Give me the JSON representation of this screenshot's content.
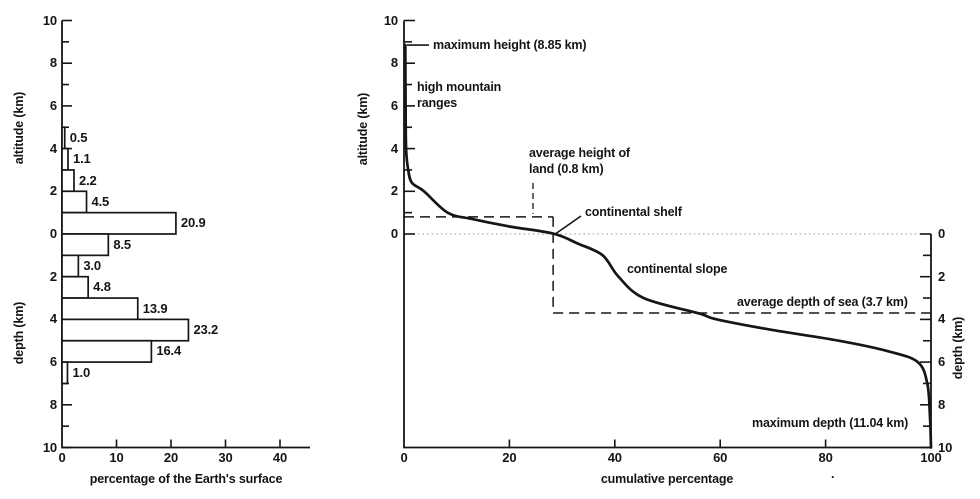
{
  "figure": {
    "background": "#ffffff",
    "ink_color": "#161616",
    "artifact_dot": "."
  },
  "chart_data": [
    {
      "id": "surface-area-histogram",
      "type": "bar",
      "orientation": "horizontal",
      "xlabel": "percentage of the Earth's surface",
      "ylabel_altitude": "altitude (km)",
      "ylabel_depth": "depth (km)",
      "x_ticks": [
        0,
        10,
        20,
        30,
        40
      ],
      "xlim": [
        0,
        45
      ],
      "altitude_axis_ticks": [
        10,
        8,
        6,
        4,
        2,
        0
      ],
      "depth_axis_ticks": [
        2,
        4,
        6,
        8,
        10
      ],
      "ylim_km": [
        -10,
        10
      ],
      "grid": false,
      "bins": [
        {
          "band_km": "altitude 4 to 5",
          "top_km": 5,
          "value": 0.5,
          "label": "0.5"
        },
        {
          "band_km": "altitude 3 to 4",
          "top_km": 4,
          "value": 1.1,
          "label": "1.1"
        },
        {
          "band_km": "altitude 2 to 3",
          "top_km": 3,
          "value": 2.2,
          "label": "2.2"
        },
        {
          "band_km": "altitude 1 to 2",
          "top_km": 2,
          "value": 4.5,
          "label": "4.5"
        },
        {
          "band_km": "altitude 0 to 1",
          "top_km": 1,
          "value": 20.9,
          "label": "20.9"
        },
        {
          "band_km": "depth 0 to 1",
          "top_km": 0,
          "value": 8.5,
          "label": "8.5"
        },
        {
          "band_km": "depth 1 to 2",
          "top_km": -1,
          "value": 3.0,
          "label": "3.0"
        },
        {
          "band_km": "depth 2 to 3",
          "top_km": -2,
          "value": 4.8,
          "label": "4.8"
        },
        {
          "band_km": "depth 3 to 4",
          "top_km": -3,
          "value": 13.9,
          "label": "13.9"
        },
        {
          "band_km": "depth 4 to 5",
          "top_km": -4,
          "value": 23.2,
          "label": "23.2"
        },
        {
          "band_km": "depth 5 to 6",
          "top_km": -5,
          "value": 16.4,
          "label": "16.4"
        },
        {
          "band_km": "depth 6 to 7",
          "top_km": -6,
          "value": 1.0,
          "label": "1.0"
        }
      ]
    },
    {
      "id": "hypsographic-curve",
      "type": "line",
      "xlabel": "cumulative percentage",
      "ylabel_altitude": "altitude (km)",
      "ylabel_depth": "depth (km)",
      "x_ticks": [
        0,
        20,
        40,
        60,
        80,
        100
      ],
      "xlim": [
        0,
        100
      ],
      "altitude_axis_ticks": [
        10,
        8,
        6,
        4,
        2,
        0
      ],
      "depth_axis_ticks": [
        0,
        2,
        4,
        6,
        8,
        10
      ],
      "ylim_km": [
        -10,
        10
      ],
      "grid": false,
      "curve_points": [
        [
          0.25,
          8.85
        ],
        [
          0.3,
          6
        ],
        [
          0.4,
          4
        ],
        [
          0.8,
          3
        ],
        [
          1.5,
          2.4
        ],
        [
          3.8,
          2
        ],
        [
          8.3,
          1
        ],
        [
          13,
          0.7
        ],
        [
          20,
          0.35
        ],
        [
          28.3,
          0.02
        ],
        [
          33,
          -0.45
        ],
        [
          37.7,
          -1
        ],
        [
          40.7,
          -2
        ],
        [
          45.5,
          -3
        ],
        [
          56,
          -3.72
        ],
        [
          59.4,
          -4
        ],
        [
          70,
          -4.5
        ],
        [
          82.6,
          -5
        ],
        [
          92,
          -5.5
        ],
        [
          97.5,
          -6
        ],
        [
          99.3,
          -7
        ],
        [
          99.8,
          -8.5
        ],
        [
          100,
          -10
        ]
      ],
      "reference_lines": {
        "sea_level_km": 0,
        "average_height_of_land_km": 0.8,
        "average_depth_of_sea_km": 3.7,
        "dashed_corner_cumulative_pct": 28.3
      },
      "annotations": {
        "max_height": {
          "text": "maximum height (8.85 km)",
          "value_km": 8.85
        },
        "high_mountain": {
          "lines": [
            "high mountain",
            "ranges"
          ]
        },
        "avg_height": {
          "lines": [
            "average height of",
            "land (0.8 km)"
          ],
          "value_km": 0.8
        },
        "continental_shelf": {
          "text": "continental shelf"
        },
        "continental_slope": {
          "text": "continental slope"
        },
        "avg_depth": {
          "text": "average depth of sea (3.7 km)",
          "value_km": 3.7
        },
        "max_depth": {
          "text": "maximum depth (11.04 km)",
          "value_km": 11.04
        }
      }
    }
  ]
}
